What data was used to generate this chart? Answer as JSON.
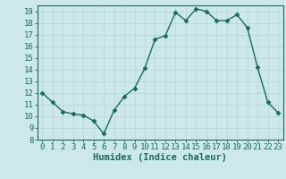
{
  "x": [
    0,
    1,
    2,
    3,
    4,
    5,
    6,
    7,
    8,
    9,
    10,
    11,
    12,
    13,
    14,
    15,
    16,
    17,
    18,
    19,
    20,
    21,
    22,
    23
  ],
  "y": [
    12.0,
    11.2,
    10.4,
    10.2,
    10.1,
    9.6,
    8.5,
    10.5,
    11.7,
    12.4,
    14.1,
    16.6,
    16.9,
    18.9,
    18.2,
    19.2,
    19.0,
    18.2,
    18.2,
    18.7,
    17.6,
    14.2,
    11.2,
    10.3
  ],
  "line_color": "#1a6b5a",
  "marker": "D",
  "marker_size": 2.5,
  "bg_color": "#cce8e8",
  "grid_color": "#b8d8d8",
  "xlabel": "Humidex (Indice chaleur)",
  "xlim": [
    -0.5,
    23.5
  ],
  "ylim": [
    8,
    19.5
  ],
  "yticks": [
    8,
    9,
    10,
    11,
    12,
    13,
    14,
    15,
    16,
    17,
    18,
    19
  ],
  "xticks": [
    0,
    1,
    2,
    3,
    4,
    5,
    6,
    7,
    8,
    9,
    10,
    11,
    12,
    13,
    14,
    15,
    16,
    17,
    18,
    19,
    20,
    21,
    22,
    23
  ],
  "tick_label_fontsize": 6.5,
  "xlabel_fontsize": 7.5,
  "line_width": 1.0
}
